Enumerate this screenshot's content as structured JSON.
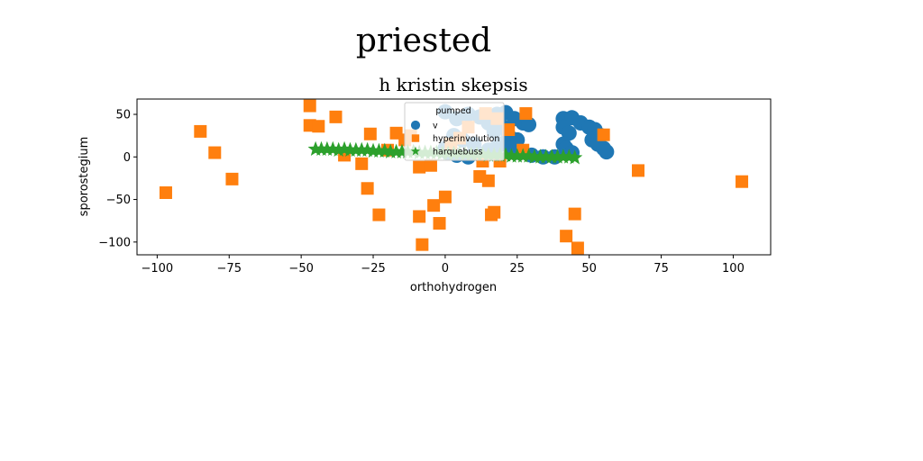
{
  "chart_data": {
    "type": "scatter",
    "suptitle": "priested",
    "title": "h kristin skepsis",
    "xlabel": "orthohydrogen",
    "ylabel": "sporostegium",
    "xlim": [
      -107,
      113
    ],
    "ylim": [
      -115,
      68
    ],
    "xticks": [
      -100,
      -75,
      -50,
      -25,
      0,
      25,
      50,
      75,
      100
    ],
    "yticks": [
      -100,
      -50,
      0,
      50
    ],
    "grid": false,
    "legend": {
      "title": "pumped",
      "placement": "upper-center"
    },
    "series": [
      {
        "name": "v",
        "marker": "circle",
        "color": "#1f77b4",
        "points": [
          [
            0,
            53
          ],
          [
            4,
            45
          ],
          [
            8,
            50
          ],
          [
            12,
            47
          ],
          [
            15,
            40
          ],
          [
            18,
            50
          ],
          [
            21,
            52
          ],
          [
            24,
            45
          ],
          [
            27,
            40
          ],
          [
            29,
            38
          ],
          [
            20,
            35
          ],
          [
            17,
            30
          ],
          [
            22,
            25
          ],
          [
            25,
            20
          ],
          [
            19,
            15
          ],
          [
            23,
            10
          ],
          [
            26,
            5
          ],
          [
            30,
            2
          ],
          [
            34,
            0
          ],
          [
            38,
            0
          ],
          [
            41,
            45
          ],
          [
            44,
            46
          ],
          [
            47,
            40
          ],
          [
            50,
            35
          ],
          [
            52,
            32
          ],
          [
            54,
            25
          ],
          [
            51,
            20
          ],
          [
            53,
            15
          ],
          [
            55,
            10
          ],
          [
            56,
            6
          ],
          [
            41,
            35
          ],
          [
            43,
            28
          ],
          [
            41,
            15
          ],
          [
            42,
            10
          ],
          [
            44,
            5
          ],
          [
            0,
            10
          ],
          [
            1,
            5
          ],
          [
            4,
            2
          ],
          [
            8,
            0
          ],
          [
            12,
            3
          ],
          [
            15,
            8
          ],
          [
            18,
            12
          ],
          [
            10,
            15
          ],
          [
            6,
            20
          ],
          [
            3,
            25
          ]
        ]
      },
      {
        "name": "hyperinvolution",
        "marker": "square",
        "color": "#ff7f0e",
        "points": [
          [
            -97,
            -42
          ],
          [
            -85,
            30
          ],
          [
            -80,
            5
          ],
          [
            -74,
            -26
          ],
          [
            -47,
            60
          ],
          [
            -47,
            37
          ],
          [
            -44,
            36
          ],
          [
            -38,
            47
          ],
          [
            -35,
            2
          ],
          [
            -29,
            -8
          ],
          [
            -27,
            -37
          ],
          [
            -26,
            27
          ],
          [
            -23,
            -68
          ],
          [
            -20,
            8
          ],
          [
            -17,
            28
          ],
          [
            -14,
            20
          ],
          [
            -12,
            25
          ],
          [
            -9,
            -70
          ],
          [
            -9,
            -12
          ],
          [
            -8,
            -103
          ],
          [
            -5,
            -10
          ],
          [
            -4,
            -57
          ],
          [
            -2,
            -78
          ],
          [
            0,
            -47
          ],
          [
            2,
            15
          ],
          [
            5,
            22
          ],
          [
            8,
            35
          ],
          [
            12,
            -23
          ],
          [
            13,
            -5
          ],
          [
            14,
            51
          ],
          [
            15,
            -28
          ],
          [
            16,
            -68
          ],
          [
            17,
            -65
          ],
          [
            18,
            45
          ],
          [
            19,
            -5
          ],
          [
            22,
            32
          ],
          [
            27,
            8
          ],
          [
            28,
            51
          ],
          [
            42,
            -93
          ],
          [
            45,
            -67
          ],
          [
            46,
            -107
          ],
          [
            55,
            26
          ],
          [
            67,
            -16
          ],
          [
            103,
            -29
          ]
        ]
      },
      {
        "name": "harquebuss",
        "marker": "star",
        "color": "#2ca02c",
        "points": [
          [
            -45,
            9
          ],
          [
            -43,
            9
          ],
          [
            -41,
            9
          ],
          [
            -39,
            9
          ],
          [
            -37,
            8
          ],
          [
            -35,
            9
          ],
          [
            -33,
            8
          ],
          [
            -31,
            8
          ],
          [
            -29,
            8
          ],
          [
            -27,
            8
          ],
          [
            -25,
            7
          ],
          [
            -23,
            7
          ],
          [
            -21,
            7
          ],
          [
            -19,
            6
          ],
          [
            -17,
            6
          ],
          [
            -15,
            6
          ],
          [
            -13,
            6
          ],
          [
            -11,
            6
          ],
          [
            -9,
            5
          ],
          [
            -7,
            5
          ],
          [
            -5,
            5
          ],
          [
            -3,
            5
          ],
          [
            -1,
            4
          ],
          [
            1,
            4
          ],
          [
            3,
            4
          ],
          [
            5,
            4
          ],
          [
            7,
            3
          ],
          [
            9,
            3
          ],
          [
            11,
            3
          ],
          [
            13,
            3
          ],
          [
            15,
            2
          ],
          [
            17,
            2
          ],
          [
            19,
            2
          ],
          [
            21,
            2
          ],
          [
            23,
            1
          ],
          [
            25,
            1
          ],
          [
            27,
            1
          ],
          [
            29,
            1
          ],
          [
            31,
            0
          ],
          [
            33,
            0
          ],
          [
            35,
            0
          ],
          [
            37,
            0
          ],
          [
            39,
            0
          ],
          [
            41,
            0
          ],
          [
            43,
            0
          ],
          [
            45,
            -1
          ]
        ]
      }
    ]
  }
}
